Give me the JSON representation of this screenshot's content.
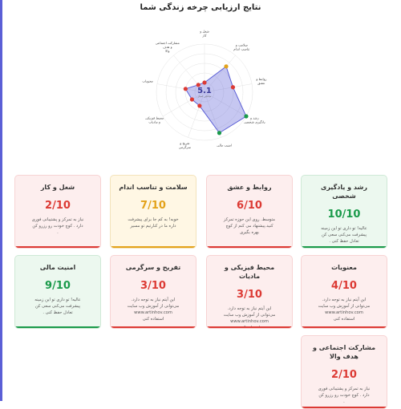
{
  "title": "نتایج ارزیابی چرخه زندگی شما",
  "radar": {
    "center_value": "5.1",
    "center_caption": "میانگین امتیاز",
    "polygon_color": "#5b5fd6",
    "axes": [
      {
        "label": "شغل و کار",
        "score": 2,
        "color": "#dc3a34"
      },
      {
        "label": "سلامت و تناسب اندام",
        "score": 7,
        "color": "#e3a21a"
      },
      {
        "label": "روابط و عشق",
        "score": 6,
        "color": "#dc3a34"
      },
      {
        "label": "رشد و یادگیری شخصی",
        "score": 10,
        "color": "#1a9a4a"
      },
      {
        "label": "امنیت مالی",
        "score": 9,
        "color": "#1a9a4a"
      },
      {
        "label": "تفریح و سرگرمی",
        "score": 3,
        "color": "#dc3a34"
      },
      {
        "label": "محیط فیزیکی و مادیات",
        "score": 3,
        "color": "#dc3a34"
      },
      {
        "label": "معنویات",
        "score": 4,
        "color": "#dc3a34"
      },
      {
        "label": "مشارکت اجتماعی و هدف والا",
        "score": 2,
        "color": "#dc3a34"
      }
    ]
  },
  "cards": [
    {
      "title": "رشد و یادگیری شخصی",
      "score": "10/10",
      "status": "green",
      "desc": "عالیه! تو داری تو این زمینه پیشرفت می‌کنی سعی کن تعادل حفظ کنی ."
    },
    {
      "title": "روابط و عشق",
      "score": "6/10",
      "status": "red",
      "desc": "متوسط. روی این حوزه تمرکز کنید.پیشنهاد می کنم از کوچ بهره بگیری"
    },
    {
      "title": "سلامت و تناسب اندام",
      "score": "7/10",
      "status": "yellow",
      "desc": "خوبه! به کم جا برای پیشرفت داره ما در کنارتیم تو مسیر"
    },
    {
      "title": "شغل و کار",
      "score": "2/10",
      "status": "red",
      "desc": "نیاز به تمرکز و پشتیبانی فوری دارد . کوچ خودت رو رزرو کن ."
    },
    {
      "title": "معنویات",
      "score": "4/10",
      "status": "red",
      "desc": "این آیتم نیاز به توجه دارد. می‌توانی از آموزش وب سایت www.artinhov.com استفاده کنی"
    },
    {
      "title": "محیط فیزیکی و مادیات",
      "score": "3/10",
      "status": "red",
      "desc": "این آیتم نیاز به توجه دارد. می‌توانی از آموزش وب سایت www.artinhov.com استفاده کنی"
    },
    {
      "title": "تفریح و سرگرمی",
      "score": "3/10",
      "status": "red",
      "desc": "این آیتم نیاز به توجه دارد. می‌توانی از آموزش وب سایت www.artinhov.com استفاده کنی"
    },
    {
      "title": "امنیت مالی",
      "score": "9/10",
      "status": "green",
      "desc": "عالیه! تو داری تو این زمینه پیشرفت می‌کنی سعی کن تعادل حفظ کنی ."
    },
    {
      "title": "مشارکت اجتماعی و هدف والا",
      "score": "2/10",
      "status": "red",
      "desc": "نیاز به تمرکز و پشتیبانی فوری دارد . کوچ خودت رو رزرو کن ."
    }
  ]
}
